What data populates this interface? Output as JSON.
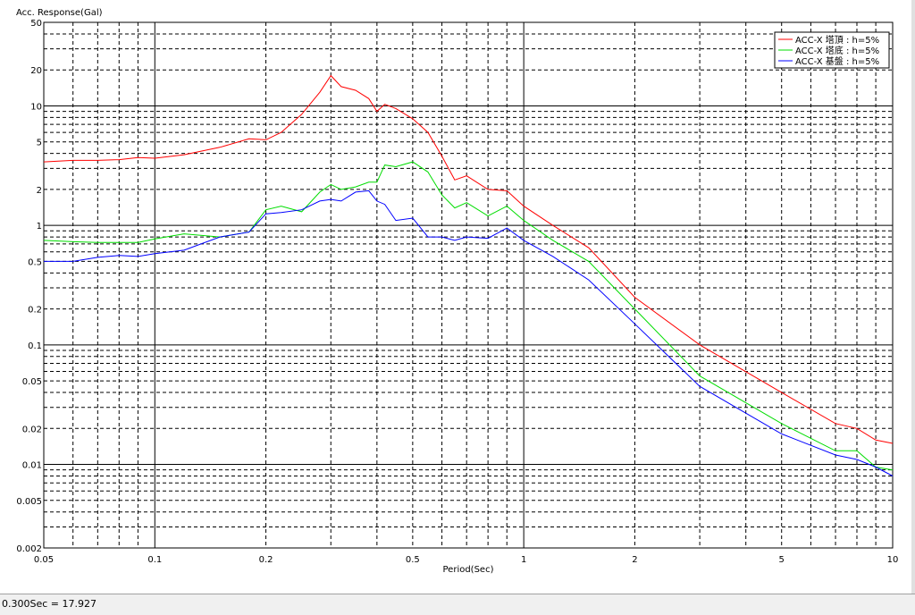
{
  "chart_data": {
    "type": "line",
    "ylabel": "Acc. Response(Gal)",
    "xlabel": "Period(Sec)",
    "xscale": "log",
    "yscale": "log",
    "grid": true,
    "legend": "upper right",
    "x": [
      0.05,
      0.06,
      0.07,
      0.08,
      0.09,
      0.1,
      0.12,
      0.15,
      0.18,
      0.2,
      0.22,
      0.25,
      0.28,
      0.3,
      0.32,
      0.35,
      0.38,
      0.4,
      0.42,
      0.45,
      0.5,
      0.55,
      0.6,
      0.65,
      0.7,
      0.8,
      0.9,
      1,
      1.2,
      1.5,
      2,
      3,
      5,
      7,
      8,
      9,
      10
    ],
    "series": [
      {
        "name": "ACC-X 塔頂 : h=5%",
        "color": "#ff0000",
        "values": [
          3.4,
          3.5,
          3.5,
          3.55,
          3.7,
          3.65,
          3.9,
          4.5,
          5.3,
          5.2,
          6,
          8.5,
          13,
          17.9,
          14.5,
          13.5,
          11.5,
          9,
          10.3,
          9.5,
          7.8,
          6,
          3.8,
          2.4,
          2.6,
          2,
          1.95,
          1.45,
          1,
          0.65,
          0.25,
          0.1,
          0.04,
          0.022,
          0.02,
          0.016,
          0.015
        ]
      },
      {
        "name": "ACC-X 塔底 : h=5%",
        "color": "#00dd00",
        "values": [
          0.75,
          0.73,
          0.72,
          0.72,
          0.72,
          0.77,
          0.85,
          0.8,
          0.88,
          1.35,
          1.45,
          1.3,
          1.9,
          2.2,
          2,
          2.1,
          2.3,
          2.3,
          3.2,
          3.1,
          3.4,
          2.8,
          1.8,
          1.4,
          1.55,
          1.2,
          1.45,
          1.1,
          0.75,
          0.5,
          0.2,
          0.055,
          0.022,
          0.013,
          0.013,
          0.0095,
          0.009
        ]
      },
      {
        "name": "ACC-X 基盤 : h=5%",
        "color": "#0000ff",
        "values": [
          0.5,
          0.5,
          0.54,
          0.56,
          0.55,
          0.58,
          0.62,
          0.8,
          0.88,
          1.25,
          1.28,
          1.35,
          1.6,
          1.65,
          1.6,
          1.9,
          1.95,
          1.6,
          1.5,
          1.1,
          1.15,
          0.8,
          0.8,
          0.75,
          0.8,
          0.78,
          0.95,
          0.75,
          0.55,
          0.35,
          0.15,
          0.045,
          0.018,
          0.012,
          0.011,
          0.0095,
          0.008
        ]
      }
    ],
    "xlim": [
      0.05,
      10
    ],
    "xticks": [
      0.05,
      0.1,
      0.2,
      0.5,
      1,
      2,
      5,
      10
    ],
    "ylim": [
      0.002,
      50
    ],
    "yticks": [
      50,
      20,
      10,
      5,
      2,
      1,
      0.5,
      0.2,
      0.1,
      0.05,
      0.02,
      0.01,
      0.005,
      0.002
    ]
  },
  "status_bar": {
    "text": "0.300Sec = 17.927"
  }
}
